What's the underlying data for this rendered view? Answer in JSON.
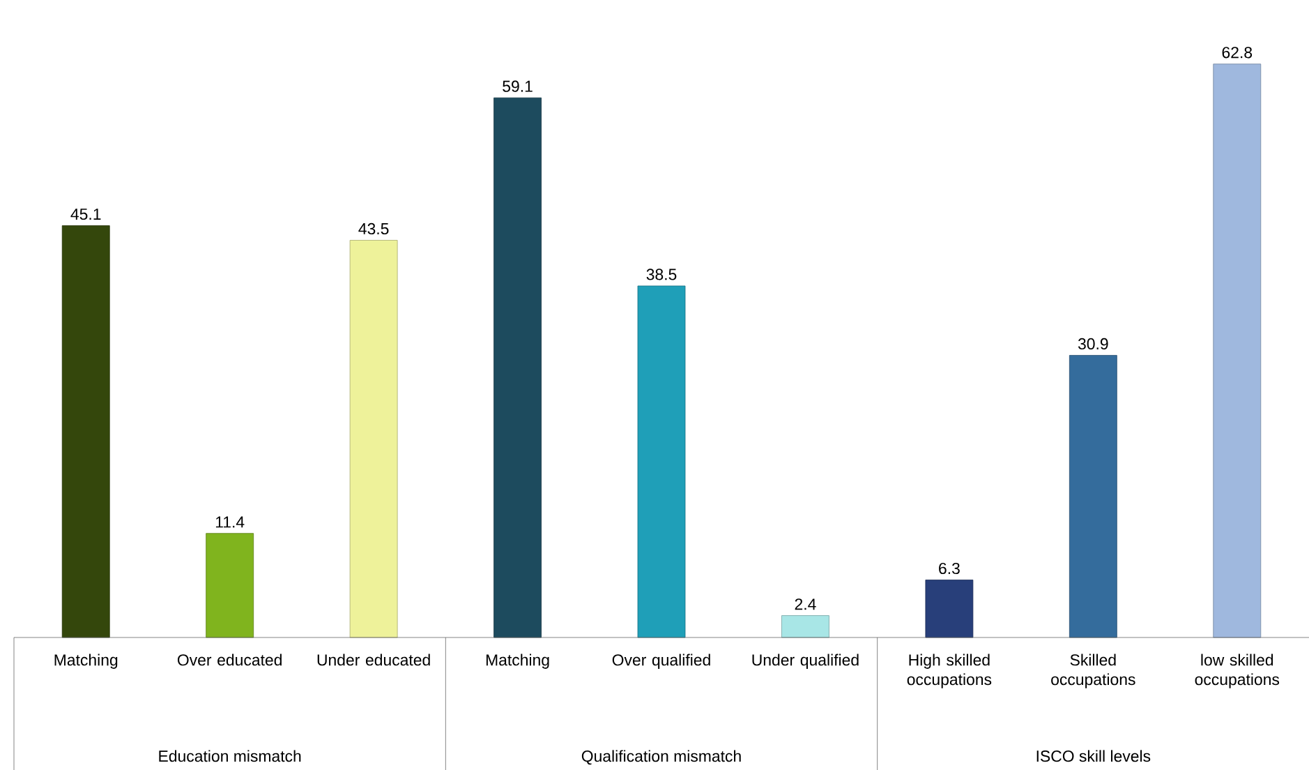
{
  "chart_data": {
    "type": "bar",
    "categories": [
      "Matching",
      "Over educated",
      "Under educated",
      "Matching",
      "Over qualified",
      "Under qualified",
      "High skilled occupations",
      "Skilled occupations",
      "low skilled occupations"
    ],
    "values": [
      45.1,
      11.4,
      43.5,
      59.1,
      38.5,
      2.4,
      6.3,
      30.9,
      62.8
    ],
    "colors": [
      "#34470c",
      "#80b41e",
      "#eef29a",
      "#1d4b5e",
      "#1f9fb8",
      "#a8e6e6",
      "#283f7a",
      "#346c9c",
      "#9fb8de"
    ],
    "data_labels": true,
    "annotations": [
      "Education mismatch",
      "Qualification mismatch",
      "ISCO skill levels"
    ]
  }
}
